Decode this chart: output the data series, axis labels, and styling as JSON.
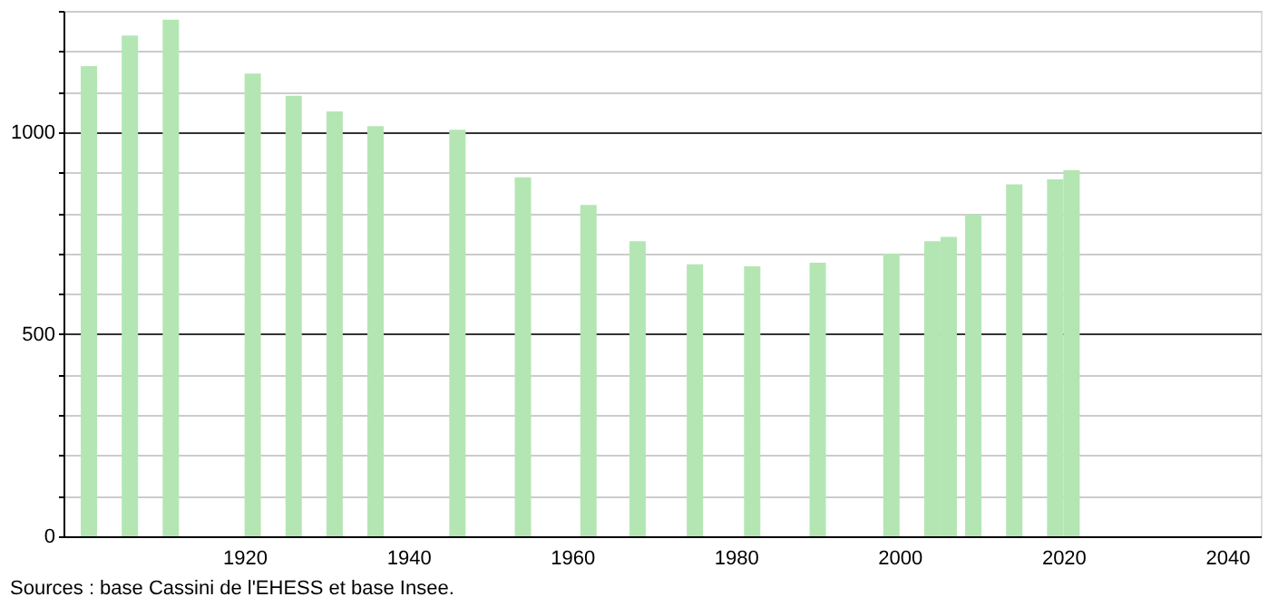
{
  "chart_data": {
    "type": "bar",
    "x": [
      1901,
      1906,
      1911,
      1921,
      1926,
      1931,
      1936,
      1946,
      1954,
      1962,
      1968,
      1975,
      1982,
      1990,
      1999,
      2004,
      2006,
      2009,
      2014,
      2019,
      2021
    ],
    "values": [
      1163,
      1239,
      1278,
      1145,
      1090,
      1051,
      1015,
      1006,
      888,
      820,
      730,
      673,
      668,
      677,
      699,
      730,
      741,
      796,
      871,
      883,
      906
    ],
    "color": "#b3e6b3",
    "xlim": [
      1899,
      2043
    ],
    "xticks": [
      1920,
      1940,
      1960,
      1980,
      2000,
      2020,
      2040
    ],
    "ylim": [
      0,
      1300
    ],
    "yticks": [
      0,
      {
        "value": 100,
        "label": null
      },
      {
        "value": 200,
        "label": null
      },
      {
        "value": 300,
        "label": null
      },
      {
        "value": 400,
        "label": null
      },
      500,
      {
        "value": 600,
        "label": null
      },
      {
        "value": 700,
        "label": null
      },
      {
        "value": 800,
        "label": null
      },
      {
        "value": 900,
        "label": null
      },
      1000,
      {
        "value": 1100,
        "label": null
      },
      {
        "value": 1200,
        "label": null
      },
      {
        "value": 1300,
        "label": null
      }
    ],
    "grid": "y",
    "annotations": [
      "Sources : base Cassini de l'EHESS et base Insee."
    ]
  }
}
